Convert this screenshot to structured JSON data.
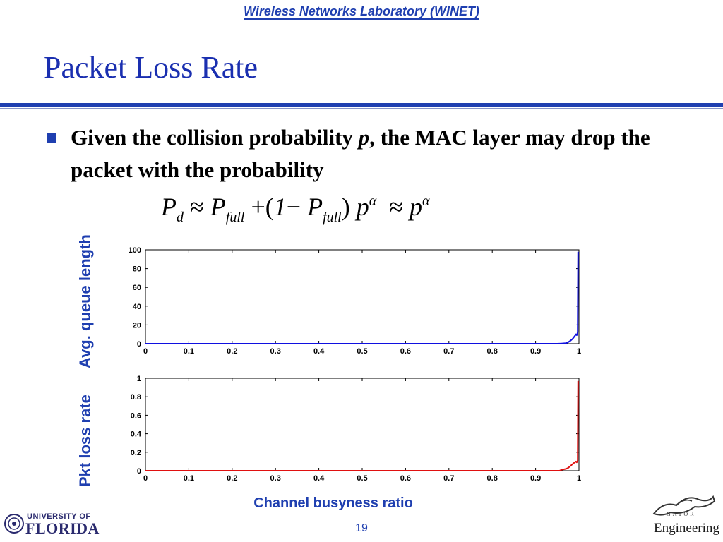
{
  "header": {
    "lab": "Wireless Networks Laboratory (WINET)"
  },
  "slide": {
    "title": "Packet Loss Rate",
    "bullet_part1": "Given the collision probability ",
    "bullet_p": "p",
    "bullet_part2": ", the MAC layer may drop the packet with the probability"
  },
  "formula": {
    "P": "P",
    "d": "d",
    "approx": "≈",
    "full": "full",
    "plus": "+",
    "open": "(",
    "one": "1",
    "minus": "−",
    "close": ")",
    "p": "p",
    "alpha": "α"
  },
  "chart_data": [
    {
      "type": "line",
      "name": "top",
      "ylabel": "Avg. queue length",
      "xlabel": "",
      "xlim": [
        0,
        1
      ],
      "ylim": [
        0,
        100
      ],
      "xticks": [
        "0",
        "0.1",
        "0.2",
        "0.3",
        "0.4",
        "0.5",
        "0.6",
        "0.7",
        "0.8",
        "0.9",
        "1"
      ],
      "yticks": [
        "0",
        "20",
        "40",
        "60",
        "80",
        "100"
      ],
      "color": "#1010e0",
      "x": [
        0,
        0.5,
        0.95,
        0.96,
        0.97,
        0.975,
        0.98,
        0.985,
        0.99,
        0.993,
        0.995,
        0.997,
        0.998
      ],
      "y": [
        0,
        0,
        0,
        0.2,
        0.5,
        1.5,
        3,
        5,
        8,
        10,
        9,
        12,
        98
      ]
    },
    {
      "type": "line",
      "name": "bottom",
      "ylabel": "Pkt loss rate",
      "xlabel": "Channel busyness ratio",
      "xlim": [
        0,
        1
      ],
      "ylim": [
        0,
        1
      ],
      "xticks": [
        "0",
        "0.1",
        "0.2",
        "0.3",
        "0.4",
        "0.5",
        "0.6",
        "0.7",
        "0.8",
        "0.9",
        "1"
      ],
      "yticks": [
        "0",
        "0.2",
        "0.4",
        "0.6",
        "0.8",
        "1"
      ],
      "color": "#e01010",
      "x": [
        0,
        0.5,
        0.955,
        0.96,
        0.97,
        0.975,
        0.98,
        0.985,
        0.99,
        0.993,
        0.995,
        0.997,
        0.998
      ],
      "y": [
        0,
        0,
        0,
        0.01,
        0.02,
        0.03,
        0.05,
        0.07,
        0.09,
        0.1,
        0.09,
        0.11,
        0.97
      ]
    }
  ],
  "footer": {
    "page_number": "19",
    "uf_line1": "UNIVERSITY OF",
    "uf_line2": "FLORIDA",
    "gator_small": "GATOR",
    "gator_text": "Engineering"
  },
  "colors": {
    "accent": "#1f3fb0",
    "title": "#1a2fb0",
    "series_top": "#1010e0",
    "series_bottom": "#e01010"
  }
}
